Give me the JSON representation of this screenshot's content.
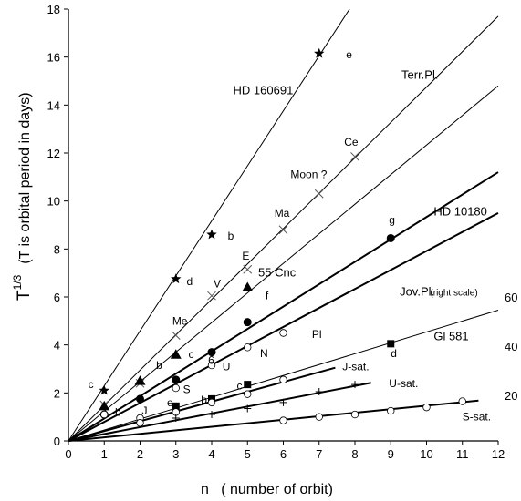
{
  "chart_data": {
    "type": "scatter",
    "xlabel": "n   ( number of orbit)",
    "ylabel_main": "T",
    "ylabel_sup": "1/3",
    "ylabel_note": "(T is orbital period in days)",
    "xlim": [
      0,
      12
    ],
    "ylim": [
      0,
      18
    ],
    "x_ticks": [
      0,
      1,
      2,
      3,
      4,
      5,
      6,
      7,
      8,
      9,
      10,
      11,
      12
    ],
    "y_ticks": [
      0,
      2,
      4,
      6,
      8,
      10,
      12,
      14,
      16,
      18
    ],
    "right_ticks": [
      {
        "label": "20",
        "y": 1.9
      },
      {
        "label": "40",
        "y": 3.95
      },
      {
        "label": "60",
        "y": 6.0
      }
    ],
    "lines": [
      {
        "name": "HD 160691",
        "x": [
          0,
          7.85
        ],
        "y": [
          0,
          18
        ],
        "bold": false
      },
      {
        "name": "Terr.Pl.",
        "x": [
          0,
          12
        ],
        "y": [
          0,
          17.7
        ],
        "bold": false
      },
      {
        "name": "",
        "x": [
          0,
          12
        ],
        "y": [
          0,
          14.8
        ],
        "bold": false
      },
      {
        "name": "HD 10180",
        "x": [
          0,
          12
        ],
        "y": [
          0,
          11.2
        ],
        "bold": true
      },
      {
        "name": "55 Cnc",
        "x": [
          0,
          12
        ],
        "y": [
          0,
          9.5
        ],
        "bold": true
      },
      {
        "name": "Jov.Pl.",
        "x": [
          0,
          12
        ],
        "y": [
          0,
          5.45
        ],
        "bold": false
      },
      {
        "name": "J-sat.",
        "x": [
          0,
          7.45
        ],
        "y": [
          0,
          3.05
        ],
        "bold": true
      },
      {
        "name": "U-sat.",
        "x": [
          0,
          8.45
        ],
        "y": [
          0,
          2.42
        ],
        "bold": true
      },
      {
        "name": "S-sat.",
        "x": [
          0,
          11.45
        ],
        "y": [
          0,
          1.68
        ],
        "bold": true
      }
    ],
    "series": [
      {
        "name": "stars",
        "marker": "star",
        "points": [
          [
            1,
            2.1
          ],
          [
            3,
            6.75
          ],
          [
            4,
            8.6
          ],
          [
            7,
            16.15
          ]
        ]
      },
      {
        "name": "crosses",
        "marker": "x",
        "points": [
          [
            1,
            1.5
          ],
          [
            2,
            2.4
          ],
          [
            3,
            4.4
          ],
          [
            4,
            6.05
          ],
          [
            5,
            7.15
          ],
          [
            6,
            8.8
          ],
          [
            7,
            10.3
          ],
          [
            8,
            11.85
          ]
        ]
      },
      {
        "name": "triangles",
        "marker": "triangle",
        "points": [
          [
            1,
            1.45
          ],
          [
            2,
            2.5
          ],
          [
            3,
            3.6
          ],
          [
            5,
            6.4
          ]
        ]
      },
      {
        "name": "circles",
        "marker": "circle-filled",
        "points": [
          [
            1,
            1.1
          ],
          [
            2,
            1.75
          ],
          [
            3,
            2.55
          ],
          [
            4,
            3.7
          ],
          [
            5,
            4.95
          ],
          [
            9,
            8.45
          ]
        ]
      },
      {
        "name": "squares",
        "marker": "square",
        "points": [
          [
            3,
            1.45
          ],
          [
            4,
            1.75
          ],
          [
            5,
            2.35
          ],
          [
            9,
            4.05
          ]
        ]
      },
      {
        "name": "open-circles",
        "marker": "circle-open",
        "points": [
          [
            1,
            1.1
          ],
          [
            2,
            0.95
          ],
          [
            3,
            2.2
          ],
          [
            4,
            3.15
          ],
          [
            5,
            3.9
          ],
          [
            6,
            4.5
          ],
          [
            6,
            2.55
          ],
          [
            5,
            1.95
          ],
          [
            4,
            1.6
          ],
          [
            3,
            1.2
          ],
          [
            2,
            0.75
          ],
          [
            6,
            0.85
          ],
          [
            7,
            1.0
          ],
          [
            8,
            1.1
          ],
          [
            9,
            1.25
          ],
          [
            10,
            1.4
          ],
          [
            11,
            1.65
          ]
        ]
      },
      {
        "name": "plus",
        "marker": "plus",
        "points": [
          [
            3,
            0.95
          ],
          [
            4,
            1.1
          ],
          [
            5,
            1.35
          ],
          [
            6,
            1.6
          ],
          [
            7,
            2.05
          ],
          [
            8,
            2.35
          ]
        ]
      }
    ],
    "annotations": [
      {
        "text": "HD 160691",
        "x": 4.6,
        "y": 14.45,
        "size": "big"
      },
      {
        "text": "Terr.Pl.",
        "x": 9.3,
        "y": 15.1,
        "size": "big"
      },
      {
        "text": "HD 10180",
        "x": 10.2,
        "y": 9.4,
        "size": "big"
      },
      {
        "text": "55 Cnc",
        "x": 5.3,
        "y": 6.85,
        "size": "big"
      },
      {
        "text": "Jov.Pl.",
        "x": 9.25,
        "y": 6.05,
        "size": "big"
      },
      {
        "text": "(right scale)",
        "x": 10.1,
        "y": 6.05,
        "size": "small"
      },
      {
        "text": "Gl 581",
        "x": 10.2,
        "y": 4.2,
        "size": "big"
      },
      {
        "text": "J-sat.",
        "x": 7.65,
        "y": 2.95,
        "size": "normal"
      },
      {
        "text": "U-sat.",
        "x": 8.95,
        "y": 2.25,
        "size": "normal"
      },
      {
        "text": "S-sat.",
        "x": 11.0,
        "y": 0.85,
        "size": "normal"
      },
      {
        "text": "e",
        "x": 7.75,
        "y": 15.95,
        "size": "normal"
      },
      {
        "text": "b",
        "x": 4.45,
        "y": 8.4,
        "size": "normal"
      },
      {
        "text": "d",
        "x": 3.3,
        "y": 6.5,
        "size": "normal"
      },
      {
        "text": "c",
        "x": 0.55,
        "y": 2.2,
        "size": "normal"
      },
      {
        "text": "Ce",
        "x": 7.7,
        "y": 12.3,
        "size": "normal"
      },
      {
        "text": "Moon ?",
        "x": 6.2,
        "y": 10.95,
        "size": "normal"
      },
      {
        "text": "Ma",
        "x": 5.75,
        "y": 9.35,
        "size": "normal"
      },
      {
        "text": "E",
        "x": 4.85,
        "y": 7.55,
        "size": "normal"
      },
      {
        "text": "V",
        "x": 4.05,
        "y": 6.4,
        "size": "normal"
      },
      {
        "text": "Me",
        "x": 2.9,
        "y": 4.85,
        "size": "normal"
      },
      {
        "text": "g",
        "x": 8.95,
        "y": 9.05,
        "size": "normal"
      },
      {
        "text": "f",
        "x": 5.5,
        "y": 5.9,
        "size": "normal"
      },
      {
        "text": "d",
        "x": 9.0,
        "y": 3.5,
        "size": "normal"
      },
      {
        "text": "Pl",
        "x": 6.8,
        "y": 4.3,
        "size": "normal"
      },
      {
        "text": "N",
        "x": 5.35,
        "y": 3.5,
        "size": "normal"
      },
      {
        "text": "6",
        "x": 3.9,
        "y": 3.2,
        "size": "normal"
      },
      {
        "text": "U",
        "x": 4.3,
        "y": 2.95,
        "size": "normal"
      },
      {
        "text": "c",
        "x": 3.35,
        "y": 3.45,
        "size": "normal"
      },
      {
        "text": "b",
        "x": 2.45,
        "y": 3.0,
        "size": "normal"
      },
      {
        "text": "S",
        "x": 3.2,
        "y": 2.0,
        "size": "normal"
      },
      {
        "text": "e",
        "x": 2.75,
        "y": 1.45,
        "size": "normal"
      },
      {
        "text": "b",
        "x": 3.7,
        "y": 1.55,
        "size": "normal"
      },
      {
        "text": "c",
        "x": 4.7,
        "y": 2.15,
        "size": "normal"
      },
      {
        "text": "J",
        "x": 2.05,
        "y": 1.1,
        "size": "normal"
      },
      {
        "text": "b",
        "x": 1.3,
        "y": 1.05,
        "size": "normal"
      }
    ]
  }
}
